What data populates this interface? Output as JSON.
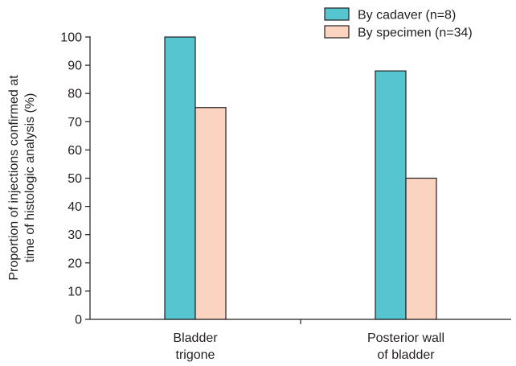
{
  "chart_data": {
    "type": "bar",
    "categories": [
      [
        "Bladder",
        "trigone"
      ],
      [
        "Posterior wall",
        "of bladder"
      ]
    ],
    "series": [
      {
        "name": "By cadaver (n=8)",
        "values": [
          100,
          88
        ],
        "color": "#56c5d0"
      },
      {
        "name": "By specimen (n=34)",
        "values": [
          75,
          50
        ],
        "color": "#fbd3c1"
      }
    ],
    "ylabel": [
      "Proportion of injections confirmed at",
      "time of histologic analysis (%)"
    ],
    "ylim": [
      0,
      100
    ],
    "yticks": [
      0,
      10,
      20,
      30,
      40,
      50,
      60,
      70,
      80,
      90,
      100
    ],
    "legend_position": "top-right",
    "grid": false
  }
}
